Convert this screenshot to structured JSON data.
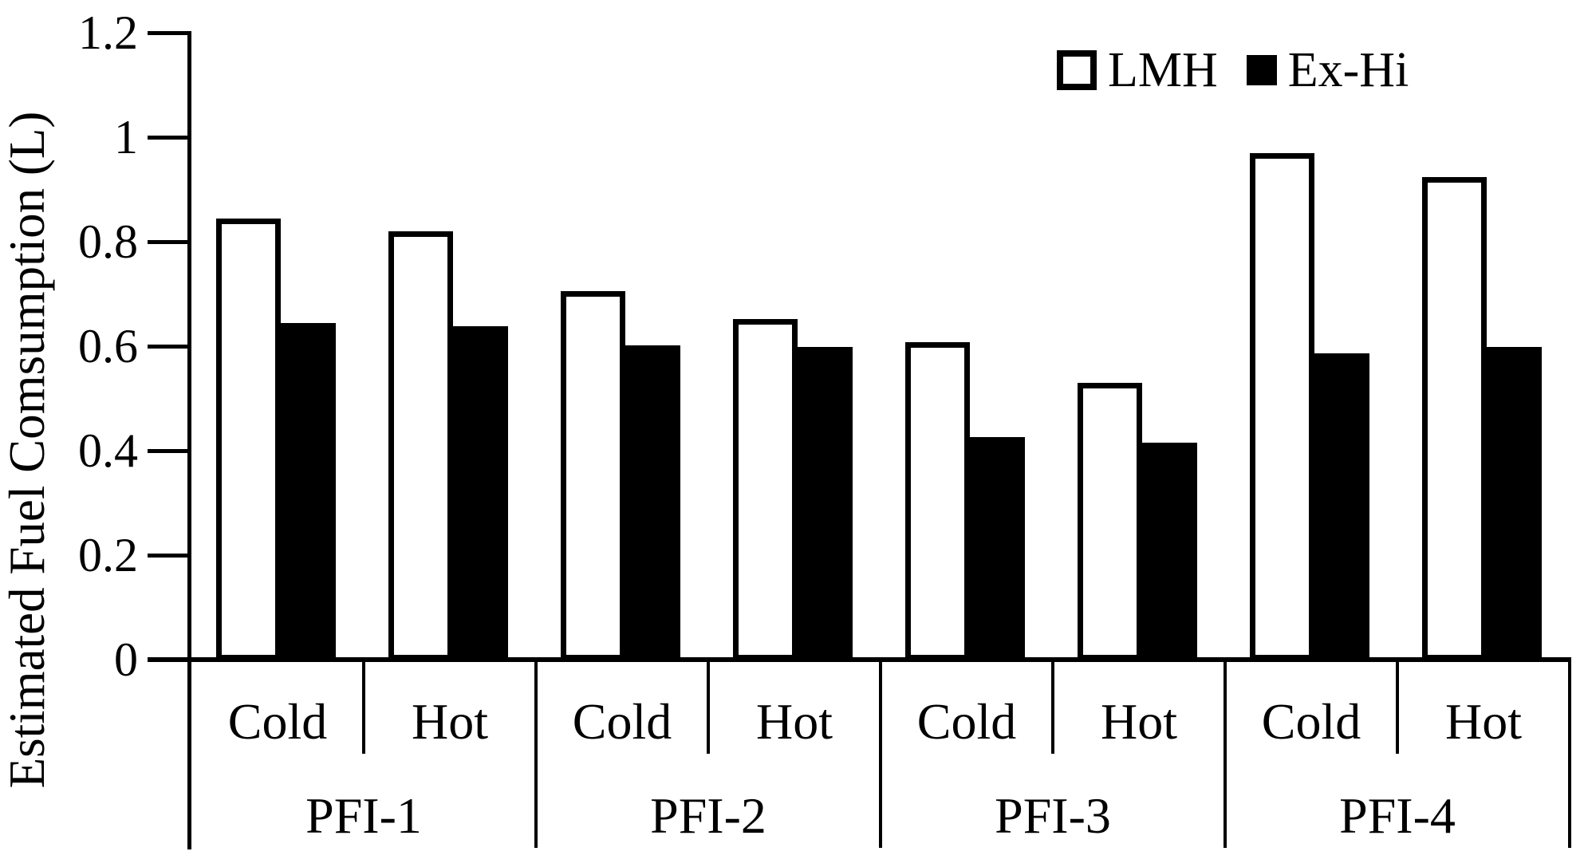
{
  "chart_data": {
    "type": "bar",
    "title": "",
    "ylabel": "Estimated Fuel Comsumption (L)",
    "xlabel": "",
    "ylim": [
      0,
      1.2
    ],
    "grid": false,
    "legend_position": "top-right",
    "ytick_values": [
      0,
      0.2,
      0.4,
      0.6,
      0.8,
      1,
      1.2
    ],
    "ytick_labels": [
      "0",
      "0.2",
      "0.4",
      "0.6",
      "0.8",
      "1",
      "1.2"
    ],
    "groups": [
      "PFI-1",
      "PFI-2",
      "PFI-3",
      "PFI-4"
    ],
    "conditions": [
      "Cold",
      "Hot"
    ],
    "categories": [
      "PFI-1 Cold",
      "PFI-1 Hot",
      "PFI-2 Cold",
      "PFI-2 Hot",
      "PFI-3 Cold",
      "PFI-3 Hot",
      "PFI-4 Cold",
      "PFI-4 Hot"
    ],
    "series": [
      {
        "name": "LMH",
        "style": "outline",
        "fill": "#ffffff",
        "stroke": "#000000",
        "values": [
          0.845,
          0.82,
          0.705,
          0.652,
          0.608,
          0.53,
          0.97,
          0.923
        ]
      },
      {
        "name": "Ex-Hi",
        "style": "solid",
        "fill": "#000000",
        "stroke": "#000000",
        "values": [
          0.645,
          0.638,
          0.602,
          0.598,
          0.426,
          0.415,
          0.587,
          0.598
        ]
      }
    ]
  },
  "legend": {
    "items": [
      {
        "label": "LMH",
        "swatch": "outline"
      },
      {
        "label": "Ex-Hi",
        "swatch": "solid"
      }
    ]
  },
  "colors": {
    "ink": "#000000",
    "paper": "#ffffff"
  }
}
